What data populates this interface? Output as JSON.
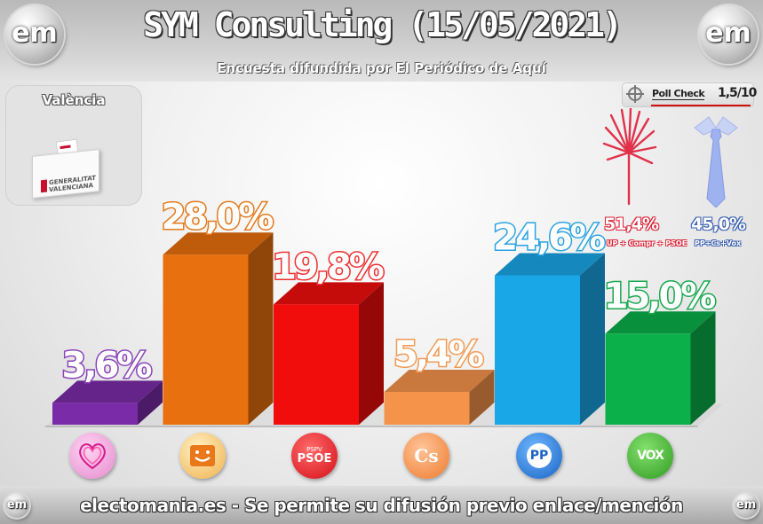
{
  "header": {
    "title": "SYM Consulting (15/05/2021)",
    "subtitle": "Encuesta difundida por El Periódico de Aquí",
    "logo_text": "em"
  },
  "region": {
    "label": "València",
    "ballot_text": "GENERALITAT VALENCIANA"
  },
  "poll_check": {
    "label": "Poll Check",
    "score": "1,5/10"
  },
  "blocs": [
    {
      "value": "51,4%",
      "label": "UP + Compr + PSOE",
      "icon": "palm-leaf-icon",
      "color": "#d9263a"
    },
    {
      "value": "45,0%",
      "label": "PP+Cs+Vox",
      "icon": "shirt-tie-icon",
      "color": "#5a8bd6"
    }
  ],
  "chart_data": {
    "type": "bar",
    "title": "SYM Consulting (15/05/2021)",
    "categories": [
      "Unides Podem",
      "Compromís",
      "PSPV-PSOE",
      "Cs",
      "PP",
      "VOX"
    ],
    "values": [
      3.6,
      28.0,
      19.8,
      5.4,
      24.6,
      15.0
    ],
    "labels": [
      "3,6%",
      "28,0%",
      "19,8%",
      "5,4%",
      "24,6%",
      "15,0%"
    ],
    "colors": [
      "#7a2ca8",
      "#e8700e",
      "#f20d0d",
      "#f5934a",
      "#19a7e8",
      "#0bb04a"
    ],
    "label_colors": [
      "#8a45b8",
      "#e27a1c",
      "#ee3030",
      "#f29a55",
      "#2aa2e0",
      "#18a84e"
    ],
    "ylim": [
      0,
      30
    ],
    "grid": false,
    "legend": "none"
  },
  "party_logos": [
    {
      "name": "unides-podem",
      "icon": "heart-icon",
      "text": "",
      "color": "#f0a4dc"
    },
    {
      "name": "compromis",
      "icon": "smile-icon",
      "text": "",
      "color": "#f3a63a"
    },
    {
      "name": "psoe",
      "icon": "psoe-logo",
      "text": "PSOE",
      "subtext": "PSPV",
      "color": "#e3101b"
    },
    {
      "name": "ciudadanos",
      "icon": "cs-logo",
      "text": "Cs",
      "color": "#f07a2a"
    },
    {
      "name": "pp",
      "icon": "pp-logo",
      "text": "PP",
      "color": "#1a66c8"
    },
    {
      "name": "vox",
      "icon": "vox-logo",
      "text": "VOX",
      "color": "#3dae2b"
    }
  ],
  "footer": {
    "text": "electomania.es - Se permite su difusión previo enlace/mención"
  }
}
